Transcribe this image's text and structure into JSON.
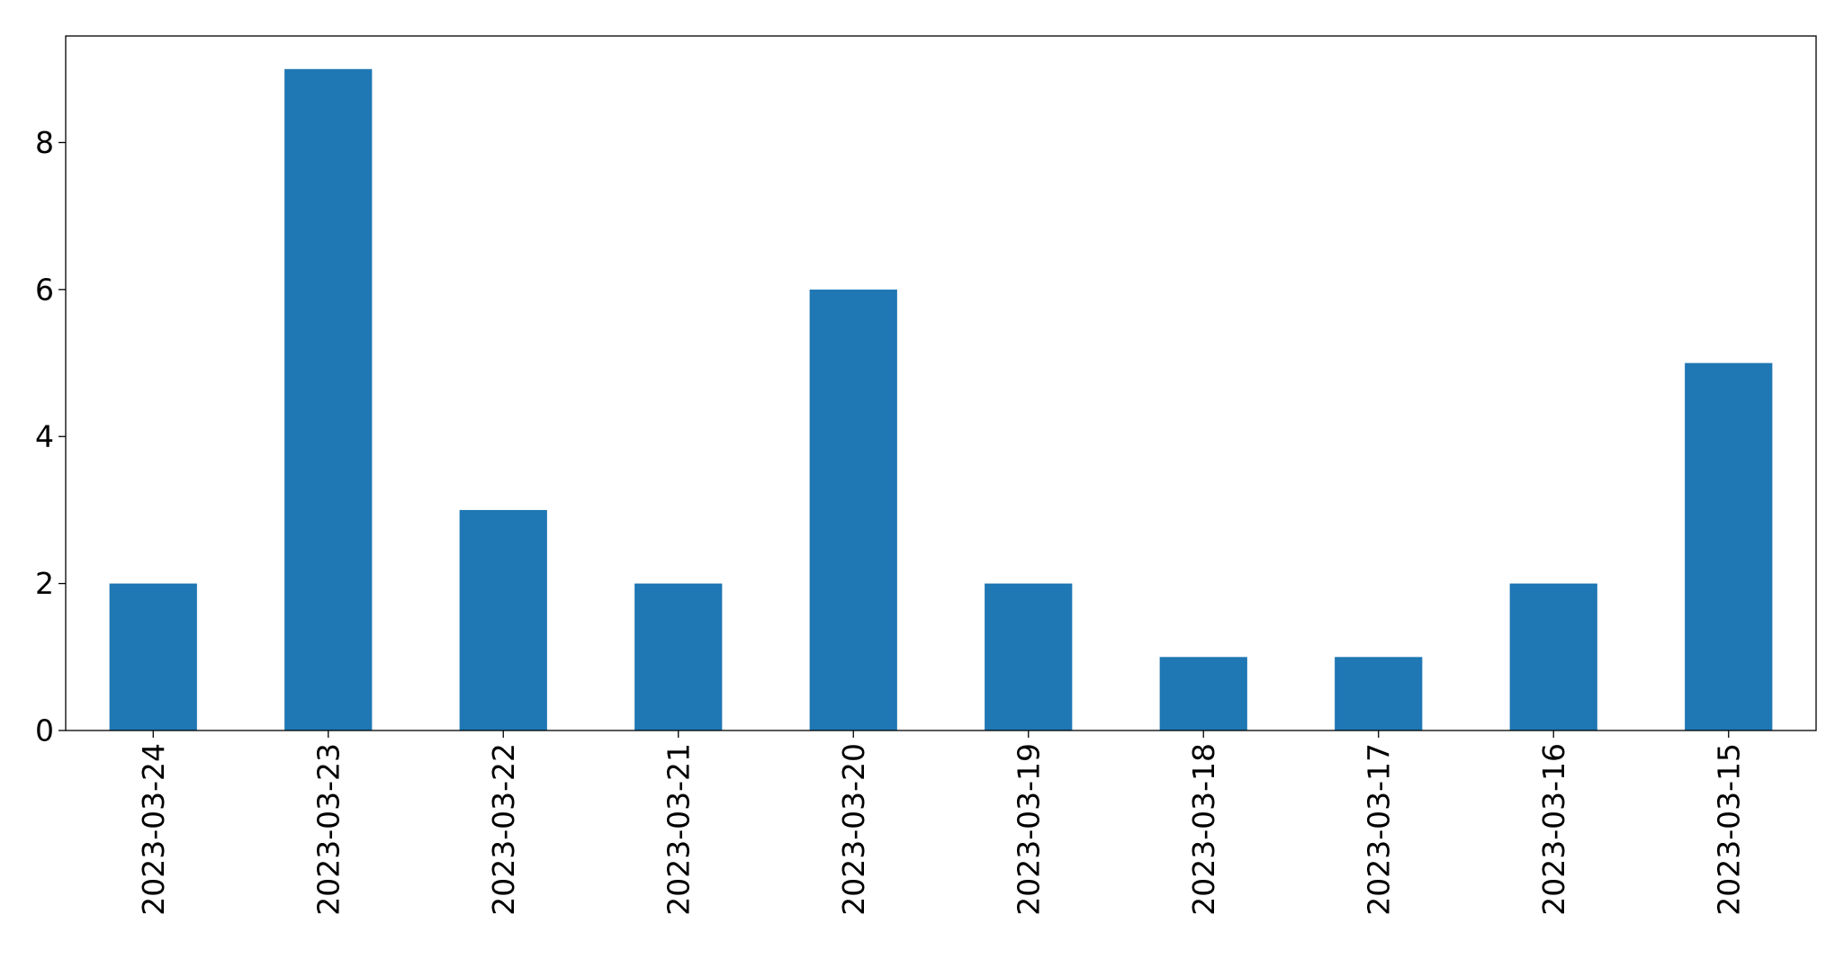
{
  "chart_data": {
    "type": "bar",
    "categories": [
      "2023-03-24",
      "2023-03-23",
      "2023-03-22",
      "2023-03-21",
      "2023-03-20",
      "2023-03-19",
      "2023-03-18",
      "2023-03-17",
      "2023-03-16",
      "2023-03-15"
    ],
    "values": [
      2,
      9,
      3,
      2,
      6,
      2,
      1,
      1,
      2,
      5
    ],
    "title": "",
    "xlabel": "",
    "ylabel": "",
    "ylim": [
      0,
      9.45
    ],
    "yticks": [
      0,
      2,
      4,
      6,
      8
    ],
    "legend": "none",
    "grid": false,
    "bar_color": "#1f77b4"
  }
}
